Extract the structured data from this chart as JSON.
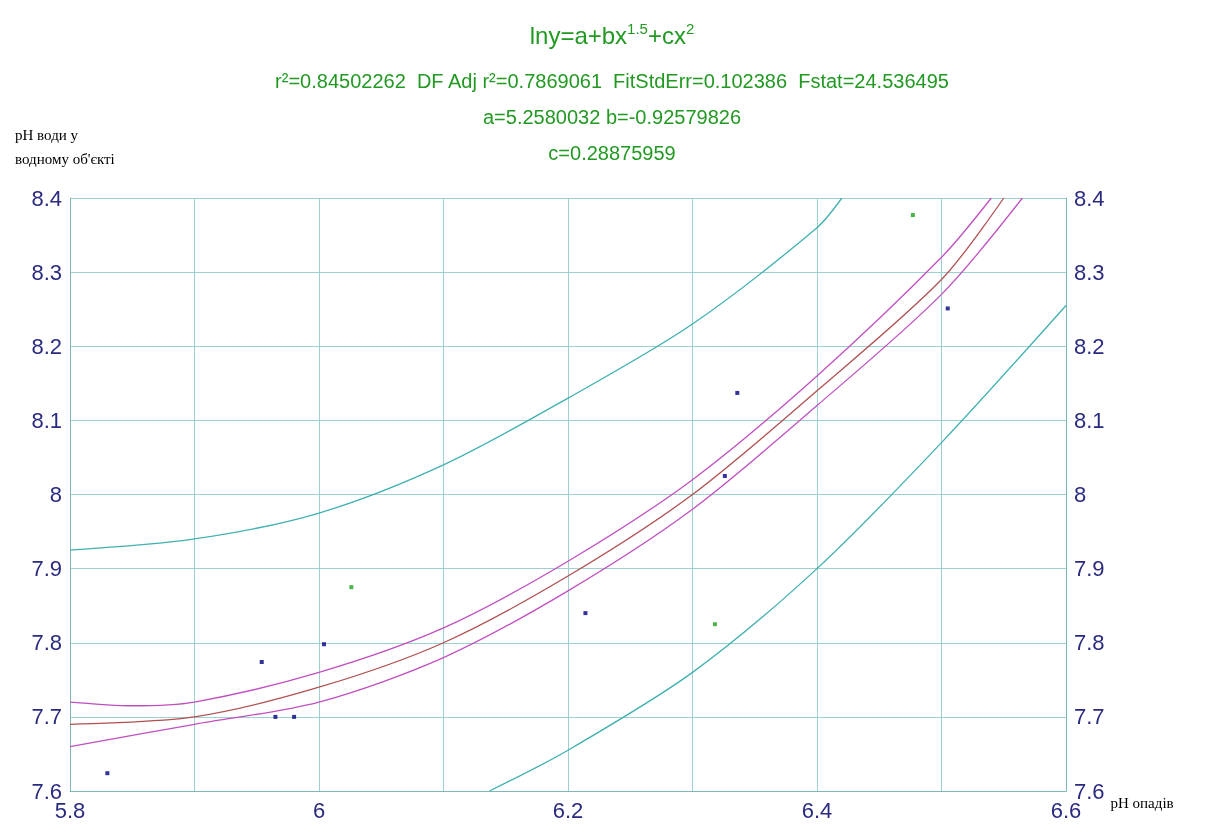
{
  "chart_data": {
    "type": "scatter",
    "title": "lny=a+bx$^{1.5}$+cx$^{2}$",
    "annotations": [
      "r²=0.84502262  DF Adj r²=0.7869061  FitStdErr=0.102386  Fstat=24.536495",
      "a=5.2580032 b=-0.92579826",
      "c=0.28875959"
    ],
    "xlabel": "pH опадів",
    "ylabel": "pH води у\nводному об'єкті",
    "series": [
      {
        "marker": "square",
        "color": "#000080",
        "x": [
          5.83,
          5.954,
          5.965,
          5.98,
          6.004,
          6.214,
          6.326,
          6.336,
          6.505
        ],
        "values": [
          7.624,
          7.774,
          7.7,
          7.7,
          7.798,
          7.84,
          8.025,
          8.137,
          8.251
        ]
      },
      {
        "marker": "square",
        "color": "#20a020",
        "x": [
          6.026,
          6.318,
          6.477
        ],
        "values": [
          7.875,
          7.825,
          8.377
        ]
      },
      {
        "type": "line",
        "color": "#b05050",
        "x": [
          5.8,
          5.9,
          6.0,
          6.1,
          6.2,
          6.3,
          6.4,
          6.5,
          6.55
        ],
        "values": [
          7.69,
          7.7,
          7.74,
          7.8,
          7.89,
          8.0,
          8.14,
          8.29,
          8.4
        ]
      },
      {
        "type": "line",
        "color": "#c050c0",
        "x": [
          5.8,
          5.85,
          5.9,
          6.0,
          6.1,
          6.2,
          6.3,
          6.4,
          6.5,
          6.54
        ],
        "values": [
          7.72,
          7.715,
          7.72,
          7.76,
          7.82,
          7.91,
          8.02,
          8.16,
          8.32,
          8.4
        ]
      },
      {
        "type": "line",
        "color": "#c050c0",
        "x": [
          5.8,
          5.9,
          6.0,
          6.1,
          6.2,
          6.3,
          6.4,
          6.5,
          6.565
        ],
        "values": [
          7.66,
          7.69,
          7.72,
          7.78,
          7.87,
          7.98,
          8.12,
          8.27,
          8.4
        ]
      },
      {
        "type": "line",
        "color": "#40b0b0",
        "x": [
          5.8,
          5.9,
          6.0,
          6.1,
          6.2,
          6.3,
          6.4,
          6.42
        ],
        "values": [
          7.925,
          7.94,
          7.975,
          8.04,
          8.13,
          8.23,
          8.36,
          8.4
        ]
      },
      {
        "type": "line",
        "color": "#40b0b0",
        "x": [
          6.137,
          6.2,
          6.3,
          6.4,
          6.5,
          6.6
        ],
        "values": [
          7.6,
          7.655,
          7.76,
          7.9,
          8.07,
          8.255
        ]
      }
    ],
    "xlim": [
      5.8,
      6.6
    ],
    "xticks": [
      5.8,
      {
        "value": 5.9,
        "label": null
      },
      6,
      {
        "value": 6.1,
        "label": null
      },
      6.2,
      {
        "value": 6.3,
        "label": null
      },
      6.4,
      {
        "value": 6.5,
        "label": null
      },
      6.6
    ],
    "ylim": [
      7.6,
      8.4
    ],
    "yticks": [
      7.6,
      7.7,
      7.8,
      7.9,
      8,
      8.1,
      8.2,
      8.3,
      8.4
    ],
    "y2lim": [
      7.6,
      8.4
    ],
    "y2ticks": [
      7.6,
      7.7,
      7.8,
      7.9,
      8,
      8.1,
      8.2,
      8.3,
      8.4
    ],
    "grid": true,
    "marker": "none",
    "line_style": "solid"
  }
}
